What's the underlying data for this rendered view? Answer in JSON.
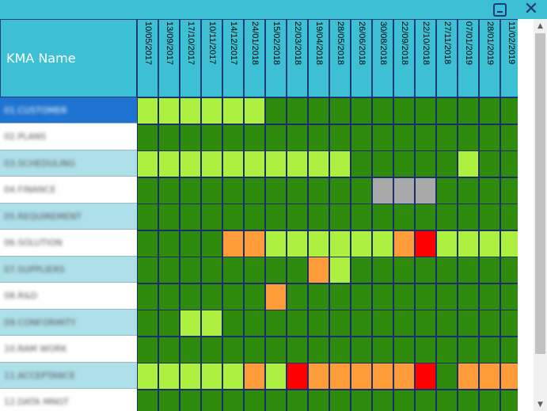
{
  "window": {
    "minimize_icon": "minimize-icon",
    "close_icon": "close-icon",
    "close_glyph": "✕"
  },
  "grid": {
    "header_label": "KMA Name",
    "dates": [
      "10/05/2017",
      "13/09/2017",
      "17/10/2017",
      "10/11/2017",
      "14/12/2017",
      "24/01/2018",
      "15/02/2018",
      "22/03/2018",
      "19/04/2018",
      "28/05/2018",
      "26/06/2018",
      "30/08/2018",
      "22/09/2018",
      "22/10/2018",
      "27/11/2018",
      "07/01/2019",
      "28/01/2019",
      "11/02/2019"
    ],
    "colors": {
      "G": "#2e8b0e",
      "L": "#adf040",
      "O": "#ff9c3a",
      "R": "#ff0000",
      "Y": "#a9a9a9"
    },
    "rows": [
      {
        "name": "01.CUSTOMER",
        "name_bg": "#1e74d0",
        "name_color": "#ffffff",
        "cells": "LLLLLLGGGGGGGGGGGG"
      },
      {
        "name": "02.PLANS",
        "name_bg": "#ffffff",
        "name_color": "#555555",
        "cells": "GGGGGGGGGGGGGGGGGG"
      },
      {
        "name": "03.SCHEDULING",
        "name_bg": "#aee0ea",
        "name_color": "#555555",
        "cells": "LLLLLLLLLLGGGGGLGG"
      },
      {
        "name": "04.FINANCE",
        "name_bg": "#ffffff",
        "name_color": "#555555",
        "cells": "GGGGGGGGGGGYYYGGGG"
      },
      {
        "name": "05.REQUIREMENT",
        "name_bg": "#aee0ea",
        "name_color": "#555555",
        "cells": "GGGGGGGGGGGGGGGGGG"
      },
      {
        "name": "06.SOLUTION",
        "name_bg": "#ffffff",
        "name_color": "#555555",
        "cells": "GGGGOOLLLLLLORLLLL"
      },
      {
        "name": "07.SUPPLIERS",
        "name_bg": "#aee0ea",
        "name_color": "#555555",
        "cells": "GGGGGGGGOLGGGGGGGG"
      },
      {
        "name": "08.R&D",
        "name_bg": "#ffffff",
        "name_color": "#555555",
        "cells": "GGGGGGOGGGGGGGGGGG"
      },
      {
        "name": "09.CONFORMITY",
        "name_bg": "#aee0ea",
        "name_color": "#555555",
        "cells": "GGLLGGGGGGGGGGGGGG"
      },
      {
        "name": "10.RAM WORK",
        "name_bg": "#ffffff",
        "name_color": "#555555",
        "cells": "GGGGGGGGGGGGGGGGGG"
      },
      {
        "name": "11.ACCEPTANCE",
        "name_bg": "#aee0ea",
        "name_color": "#555555",
        "cells": "LLLLLOLROOOOORGOOO"
      },
      {
        "name": "12.DATA MNGT",
        "name_bg": "#ffffff",
        "name_color": "#555555",
        "cells": "GGGGGGGGGGGGGGGGGG"
      }
    ]
  },
  "scrollbar": {
    "up_glyph": "▲",
    "down_glyph": "▼"
  }
}
